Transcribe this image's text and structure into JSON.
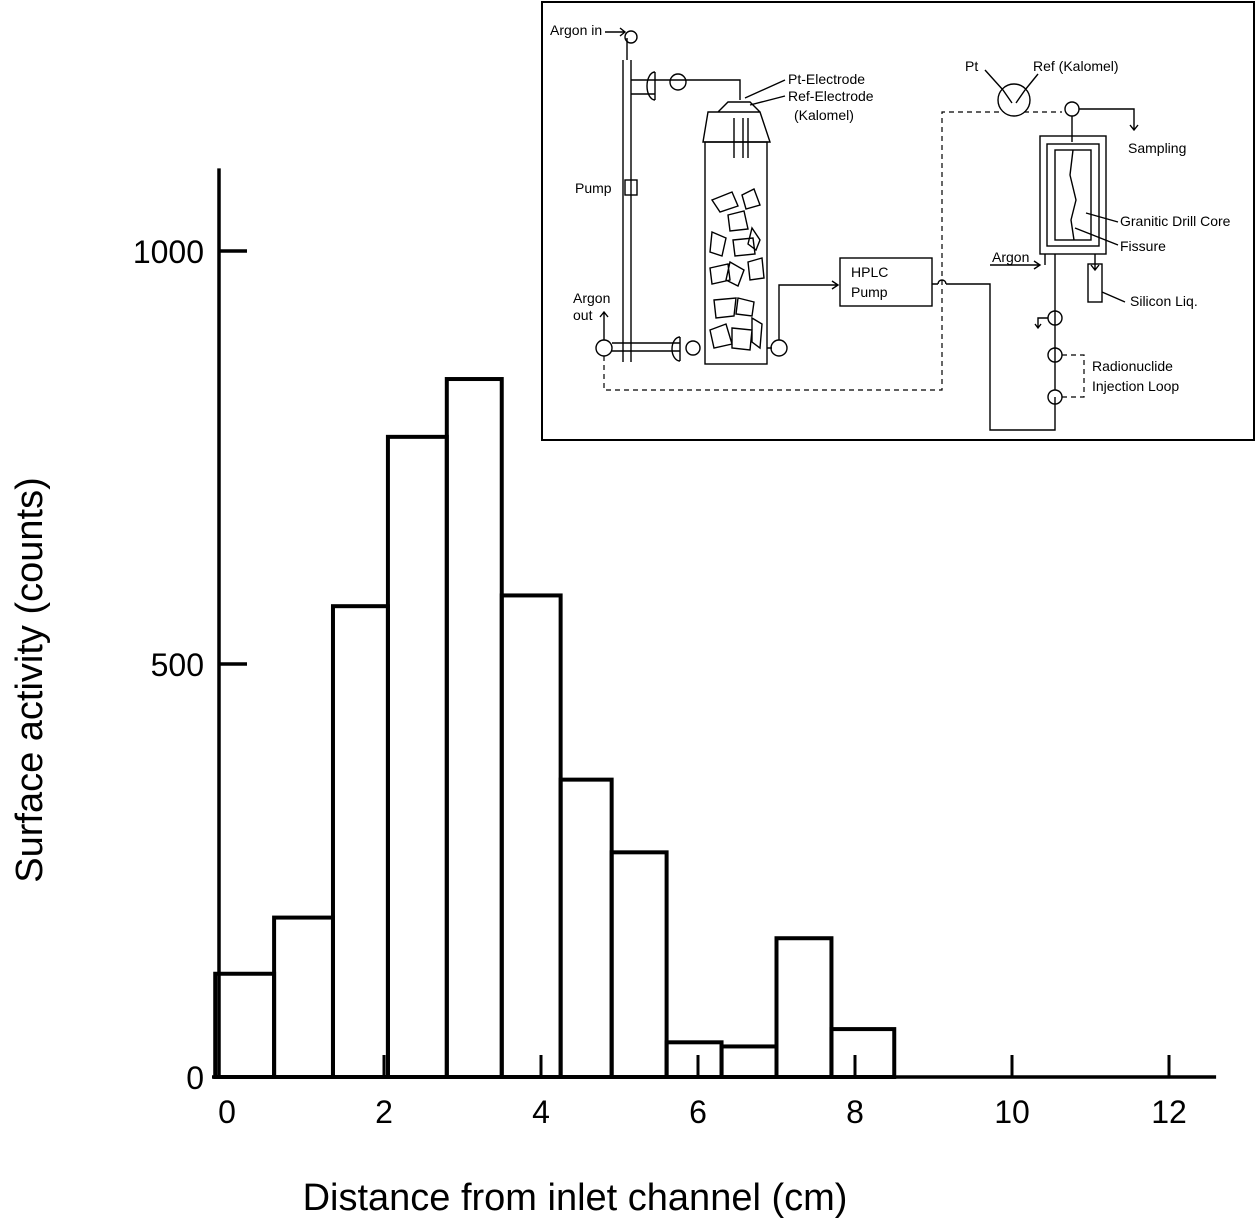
{
  "chart_data": {
    "type": "bar",
    "xlabel": "Distance from inlet channel (cm)",
    "ylabel": "Surface activity (counts)",
    "xlim": [
      0,
      12.6
    ],
    "ylim": [
      0,
      1100
    ],
    "x_ticks": [
      0,
      2,
      4,
      6,
      8,
      10,
      12
    ],
    "y_ticks": [
      0,
      500,
      1000
    ],
    "bins": [
      {
        "x0": -0.15,
        "x1": 0.6,
        "value": 125
      },
      {
        "x0": 0.6,
        "x1": 1.35,
        "value": 193
      },
      {
        "x0": 1.35,
        "x1": 2.05,
        "value": 570
      },
      {
        "x0": 2.05,
        "x1": 2.8,
        "value": 775
      },
      {
        "x0": 2.8,
        "x1": 3.5,
        "value": 845
      },
      {
        "x0": 3.5,
        "x1": 4.25,
        "value": 583
      },
      {
        "x0": 4.25,
        "x1": 4.9,
        "value": 360
      },
      {
        "x0": 4.9,
        "x1": 5.6,
        "value": 272
      },
      {
        "x0": 5.6,
        "x1": 6.3,
        "value": 42
      },
      {
        "x0": 6.3,
        "x1": 7.0,
        "value": 37
      },
      {
        "x0": 7.0,
        "x1": 7.7,
        "value": 168
      },
      {
        "x0": 7.7,
        "x1": 8.5,
        "value": 58
      }
    ]
  },
  "inset": {
    "labels": {
      "argon_in": "Argon in",
      "pt_electrode": "Pt-Electrode",
      "ref_electrode": "Ref-Electrode",
      "kalomel_1": "(Kalomel)",
      "pump": "Pump",
      "argon_out_1": "Argon",
      "argon_out_2": "out",
      "hplc_1": "HPLC",
      "hplc_2": "Pump",
      "pt": "Pt",
      "ref_kalomel": "Ref (Kalomel)",
      "sampling": "Sampling",
      "granitic": "Granitic Drill Core",
      "fissure": "Fissure",
      "argon": "Argon",
      "silicon": "Silicon Liq.",
      "radionuclide": "Radionuclide",
      "injection_loop": "Injection Loop"
    }
  }
}
